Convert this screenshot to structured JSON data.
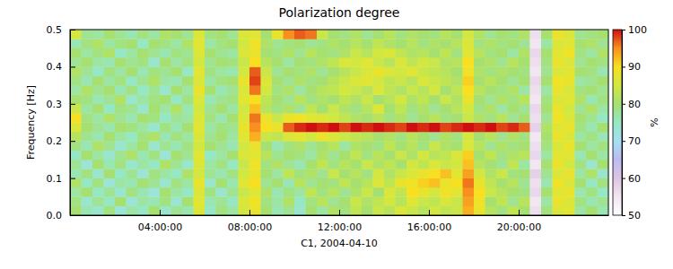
{
  "chart_data": {
    "type": "heatmap",
    "title": "Polarization degree",
    "x_label": "C1, 2004-04-10",
    "y_label": "Frequency [Hz]",
    "xlim": [
      0,
      24
    ],
    "xticks": [
      {
        "value": 4,
        "label": "04:00:00"
      },
      {
        "value": 8,
        "label": "08:00:00"
      },
      {
        "value": 12,
        "label": "12:00:00"
      },
      {
        "value": 16,
        "label": "16:00:00"
      },
      {
        "value": 20,
        "label": "20:00:00"
      }
    ],
    "ylim": [
      0,
      0.5
    ],
    "yticks": [
      {
        "value": 0,
        "label": "0.0"
      },
      0.1,
      0.2,
      0.3,
      0.4,
      0.5
    ],
    "zlim": [
      50,
      100
    ],
    "zticks": [
      50,
      60,
      70,
      80,
      90,
      100
    ],
    "zlabel": "%",
    "x": [
      0,
      0.5,
      1,
      1.5,
      2,
      2.5,
      3,
      3.5,
      4,
      4.5,
      5,
      5.5,
      6,
      6.5,
      7,
      7.5,
      8,
      8.5,
      9,
      9.5,
      10,
      10.5,
      11,
      11.5,
      12,
      12.5,
      13,
      13.5,
      14,
      14.5,
      15,
      15.5,
      16,
      16.5,
      17,
      17.5,
      18,
      18.5,
      19,
      19.5,
      20,
      20.5,
      21,
      21.5,
      22,
      22.5,
      23,
      23.5
    ],
    "y": [
      0,
      0.025,
      0.05,
      0.075,
      0.1,
      0.125,
      0.15,
      0.175,
      0.2,
      0.225,
      0.25,
      0.275,
      0.3,
      0.325,
      0.35,
      0.375,
      0.4,
      0.425,
      0.45,
      0.475
    ],
    "z": [
      [
        80,
        76,
        74,
        79,
        73,
        77,
        75,
        80,
        74,
        78,
        76,
        86,
        75,
        79,
        77,
        85,
        88,
        80,
        76,
        78,
        74,
        80,
        77,
        81,
        79,
        83,
        80,
        84,
        82,
        86,
        84,
        82,
        85,
        83,
        84,
        93,
        88,
        82,
        79,
        83,
        80,
        56,
        79,
        86,
        87,
        77,
        80,
        76
      ],
      [
        79,
        74,
        78,
        75,
        80,
        73,
        77,
        76,
        79,
        74,
        80,
        87,
        76,
        78,
        75,
        86,
        89,
        79,
        77,
        81,
        75,
        79,
        82,
        78,
        80,
        84,
        81,
        83,
        85,
        82,
        87,
        84,
        83,
        86,
        84,
        94,
        89,
        80,
        83,
        78,
        82,
        55,
        77,
        88,
        86,
        79,
        76,
        78
      ],
      [
        77,
        80,
        75,
        78,
        74,
        79,
        76,
        73,
        80,
        77,
        75,
        86,
        79,
        74,
        78,
        84,
        87,
        81,
        76,
        79,
        77,
        83,
        79,
        82,
        78,
        81,
        84,
        80,
        86,
        83,
        90,
        88,
        85,
        89,
        87,
        95,
        90,
        84,
        82,
        80,
        79,
        57,
        80,
        87,
        88,
        76,
        79,
        75
      ],
      [
        81,
        75,
        79,
        73,
        77,
        76,
        80,
        78,
        74,
        79,
        77,
        88,
        74,
        80,
        76,
        87,
        90,
        78,
        80,
        76,
        82,
        78,
        80,
        79,
        83,
        80,
        82,
        86,
        83,
        88,
        89,
        91,
        92,
        88,
        90,
        96,
        88,
        83,
        80,
        82,
        78,
        56,
        76,
        89,
        86,
        80,
        75,
        79
      ],
      [
        76,
        79,
        74,
        80,
        75,
        78,
        73,
        79,
        77,
        75,
        81,
        85,
        78,
        76,
        79,
        85,
        88,
        80,
        77,
        83,
        79,
        81,
        78,
        84,
        80,
        82,
        79,
        85,
        81,
        84,
        86,
        88,
        90,
        92,
        87,
        94,
        85,
        81,
        84,
        79,
        80,
        58,
        78,
        86,
        88,
        77,
        81,
        74
      ],
      [
        78,
        73,
        80,
        76,
        79,
        74,
        77,
        75,
        81,
        78,
        74,
        86,
        77,
        79,
        75,
        84,
        89,
        79,
        81,
        78,
        76,
        80,
        83,
        79,
        82,
        80,
        84,
        81,
        83,
        80,
        85,
        83,
        86,
        84,
        85,
        92,
        82,
        80,
        78,
        83,
        77,
        55,
        80,
        88,
        85,
        79,
        74,
        80
      ],
      [
        75,
        80,
        77,
        74,
        78,
        81,
        76,
        79,
        73,
        80,
        78,
        87,
        75,
        77,
        80,
        86,
        87,
        82,
        78,
        80,
        79,
        77,
        81,
        78,
        80,
        83,
        79,
        82,
        80,
        84,
        81,
        85,
        82,
        83,
        86,
        91,
        80,
        83,
        79,
        81,
        82,
        57,
        77,
        87,
        87,
        76,
        80,
        77
      ],
      [
        79,
        76,
        81,
        78,
        74,
        77,
        80,
        74,
        78,
        76,
        79,
        85,
        80,
        78,
        76,
        85,
        88,
        80,
        76,
        79,
        81,
        78,
        80,
        82,
        77,
        81,
        80,
        79,
        83,
        80,
        82,
        79,
        84,
        81,
        80,
        86,
        82,
        78,
        81,
        79,
        80,
        56,
        79,
        86,
        88,
        80,
        77,
        79
      ],
      [
        82,
        78,
        76,
        80,
        77,
        75,
        79,
        81,
        76,
        79,
        77,
        86,
        78,
        80,
        77,
        87,
        93,
        84,
        83,
        86,
        87,
        85,
        88,
        86,
        84,
        83,
        82,
        80,
        81,
        79,
        82,
        80,
        78,
        81,
        79,
        85,
        80,
        82,
        78,
        81,
        79,
        55,
        80,
        88,
        86,
        77,
        79,
        76
      ],
      [
        86,
        80,
        78,
        76,
        80,
        79,
        77,
        74,
        79,
        76,
        80,
        87,
        77,
        79,
        78,
        88,
        95,
        90,
        88,
        97,
        99,
        100,
        99,
        100,
        98,
        100,
        99,
        100,
        99,
        98,
        100,
        99,
        100,
        98,
        99,
        100,
        99,
        100,
        98,
        99,
        97,
        58,
        81,
        87,
        88,
        79,
        76,
        80
      ],
      [
        90,
        79,
        77,
        81,
        78,
        76,
        80,
        79,
        75,
        78,
        77,
        86,
        79,
        76,
        80,
        86,
        96,
        88,
        84,
        88,
        89,
        87,
        86,
        85,
        83,
        81,
        80,
        82,
        79,
        81,
        78,
        80,
        82,
        79,
        80,
        84,
        81,
        79,
        82,
        78,
        80,
        56,
        78,
        89,
        86,
        80,
        78,
        75
      ],
      [
        84,
        77,
        80,
        75,
        79,
        78,
        74,
        80,
        77,
        81,
        76,
        85,
        78,
        80,
        77,
        85,
        92,
        82,
        79,
        81,
        78,
        83,
        80,
        84,
        81,
        79,
        82,
        86,
        80,
        83,
        79,
        81,
        78,
        80,
        82,
        85,
        79,
        81,
        77,
        80,
        78,
        57,
        80,
        88,
        85,
        78,
        81,
        77
      ],
      [
        80,
        79,
        76,
        78,
        81,
        74,
        77,
        79,
        80,
        75,
        79,
        86,
        76,
        78,
        79,
        87,
        90,
        83,
        80,
        78,
        82,
        79,
        81,
        80,
        83,
        81,
        84,
        80,
        82,
        85,
        81,
        83,
        80,
        84,
        81,
        88,
        80,
        78,
        81,
        79,
        82,
        55,
        79,
        86,
        87,
        81,
        76,
        79
      ],
      [
        77,
        81,
        78,
        80,
        76,
        79,
        75,
        78,
        74,
        80,
        77,
        88,
        80,
        76,
        78,
        86,
        96,
        85,
        79,
        81,
        77,
        80,
        82,
        83,
        85,
        84,
        82,
        86,
        83,
        81,
        84,
        82,
        85,
        80,
        83,
        90,
        82,
        80,
        79,
        81,
        77,
        56,
        77,
        88,
        86,
        79,
        80,
        78
      ],
      [
        79,
        76,
        80,
        77,
        79,
        75,
        78,
        81,
        77,
        76,
        80,
        86,
        77,
        79,
        80,
        88,
        98,
        86,
        80,
        78,
        81,
        79,
        80,
        82,
        84,
        86,
        87,
        85,
        83,
        84,
        82,
        86,
        84,
        83,
        81,
        91,
        80,
        82,
        80,
        78,
        80,
        57,
        80,
        89,
        88,
        77,
        78,
        80
      ],
      [
        81,
        78,
        75,
        79,
        77,
        80,
        76,
        79,
        78,
        80,
        75,
        87,
        79,
        77,
        76,
        85,
        97,
        84,
        78,
        80,
        79,
        81,
        78,
        80,
        82,
        84,
        86,
        88,
        86,
        85,
        87,
        84,
        83,
        82,
        80,
        89,
        81,
        79,
        81,
        80,
        79,
        55,
        78,
        86,
        87,
        80,
        79,
        76
      ],
      [
        78,
        80,
        77,
        76,
        80,
        78,
        79,
        74,
        80,
        77,
        79,
        85,
        78,
        80,
        79,
        84,
        90,
        82,
        80,
        77,
        80,
        79,
        81,
        83,
        86,
        85,
        87,
        84,
        82,
        86,
        83,
        85,
        84,
        81,
        82,
        90,
        80,
        81,
        78,
        82,
        80,
        56,
        79,
        88,
        86,
        78,
        80,
        79
      ],
      [
        80,
        77,
        79,
        81,
        75,
        77,
        80,
        78,
        76,
        79,
        78,
        86,
        80,
        78,
        77,
        86,
        88,
        80,
        79,
        81,
        78,
        82,
        80,
        79,
        81,
        84,
        82,
        85,
        86,
        83,
        81,
        82,
        80,
        83,
        79,
        87,
        82,
        79,
        80,
        77,
        81,
        57,
        80,
        87,
        89,
        79,
        77,
        81
      ],
      [
        76,
        79,
        81,
        77,
        79,
        80,
        75,
        80,
        79,
        77,
        81,
        87,
        77,
        79,
        80,
        85,
        89,
        81,
        78,
        79,
        80,
        78,
        79,
        81,
        80,
        82,
        80,
        83,
        81,
        80,
        82,
        79,
        81,
        80,
        82,
        86,
        79,
        81,
        79,
        80,
        78,
        55,
        77,
        86,
        87,
        80,
        81,
        78
      ],
      [
        85,
        78,
        77,
        80,
        78,
        76,
        79,
        77,
        81,
        80,
        78,
        86,
        79,
        80,
        78,
        86,
        87,
        80,
        88,
        95,
        97,
        96,
        84,
        80,
        79,
        81,
        78,
        80,
        82,
        79,
        81,
        80,
        79,
        82,
        80,
        85,
        81,
        78,
        80,
        79,
        81,
        56,
        80,
        88,
        86,
        78,
        79,
        80
      ]
    ]
  }
}
